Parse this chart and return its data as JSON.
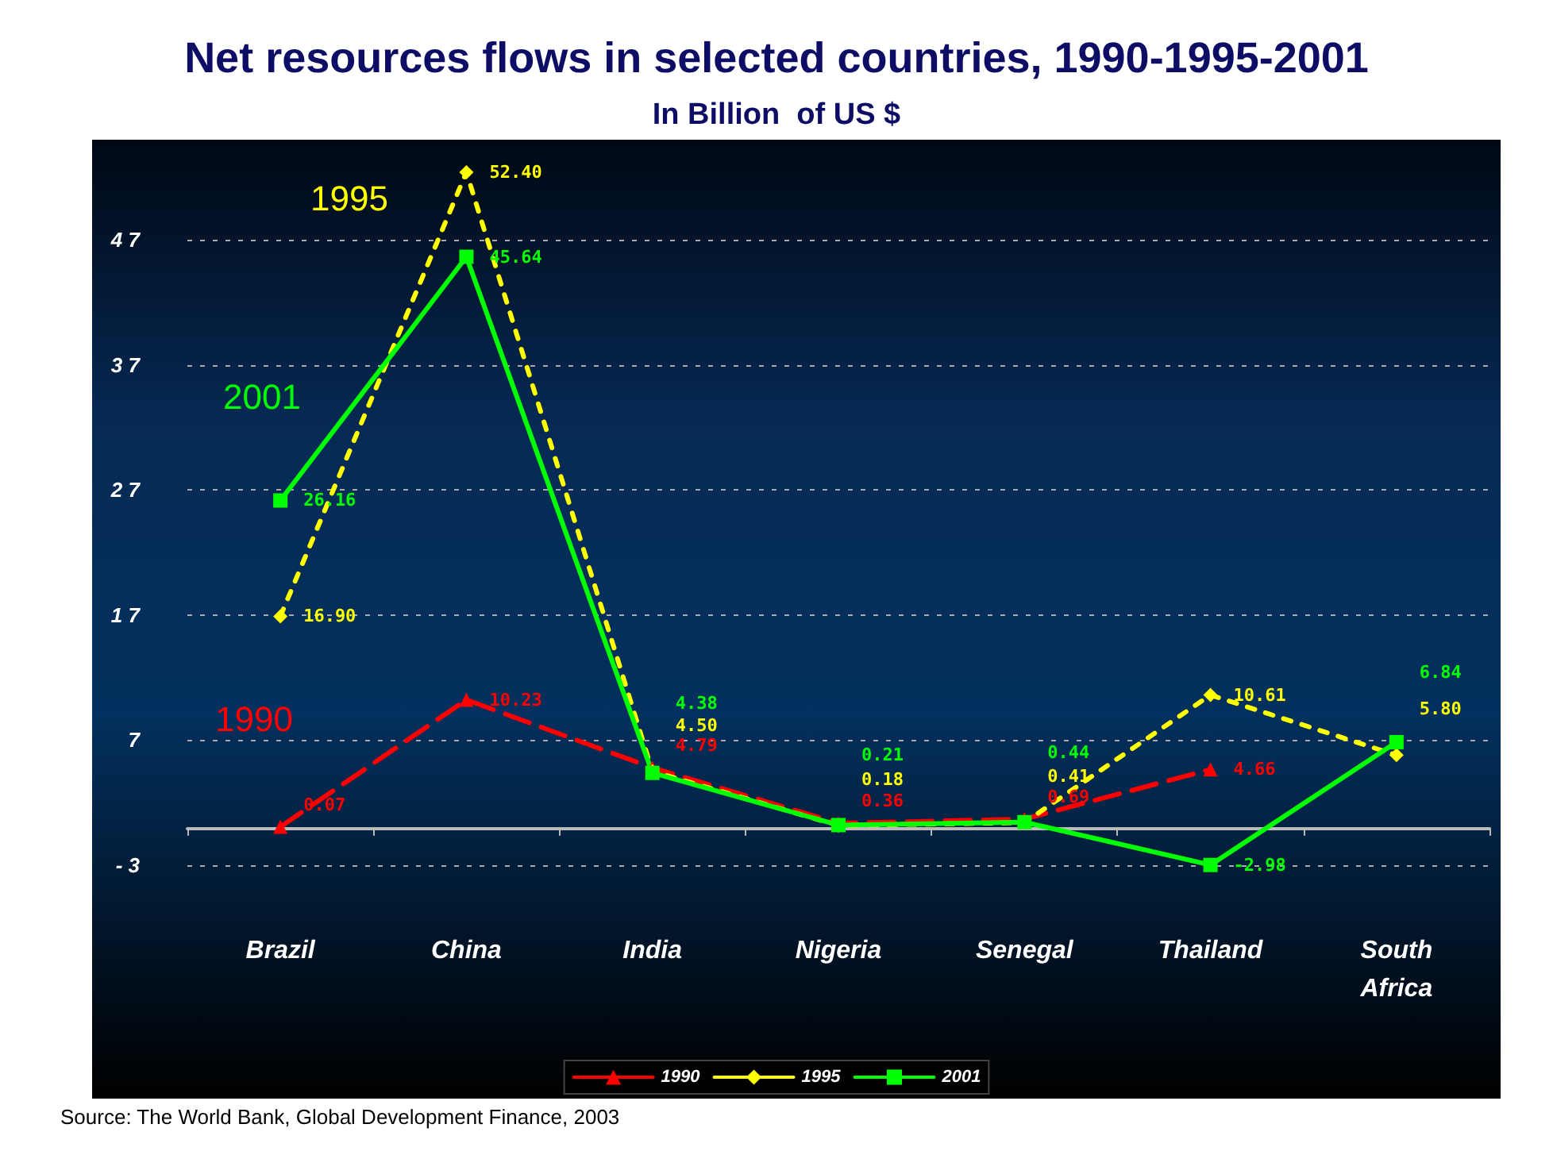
{
  "chart_data": {
    "type": "line",
    "title": "Net resources flows in selected countries, 1990-1995-2001",
    "subtitle": "In Billion  of US $",
    "categories": [
      "Brazil",
      "China",
      "India",
      "Nigeria",
      "Senegal",
      "Thailand",
      "South Africa"
    ],
    "series": [
      {
        "name": "1990",
        "color": "#ff0000",
        "marker": "triangle",
        "line_style": "dashed",
        "values": [
          0.07,
          10.23,
          4.79,
          0.36,
          0.69,
          4.66,
          null
        ],
        "value_labels": [
          "0.07",
          "10.23",
          "4.79",
          "0.36",
          "0.69",
          "4.66",
          null
        ]
      },
      {
        "name": "1995",
        "color": "#ffff00",
        "marker": "diamond",
        "line_style": "dotted",
        "values": [
          16.9,
          52.4,
          4.5,
          0.18,
          0.41,
          10.61,
          5.8
        ],
        "value_labels": [
          "16.90",
          "52.40",
          "4.50",
          "0.18",
          "0.41",
          "10.61",
          "5.80"
        ]
      },
      {
        "name": "2001",
        "color": "#00ff00",
        "marker": "square",
        "line_style": "solid",
        "values": [
          26.16,
          45.64,
          4.38,
          0.21,
          0.44,
          -2.98,
          6.84
        ],
        "value_labels": [
          "26.16",
          "45.64",
          "4.38",
          "0.21",
          "0.44",
          "-2.98",
          "6.84"
        ]
      }
    ],
    "ylim": [
      -3,
      55
    ],
    "yticks": [
      -3,
      7,
      17,
      27,
      37,
      47
    ],
    "grid": "y",
    "legend": "bottom",
    "annotations": [
      "1990",
      "1995",
      "2001",
      "Source: The World Bank, Global Development Finance, 2003"
    ]
  }
}
